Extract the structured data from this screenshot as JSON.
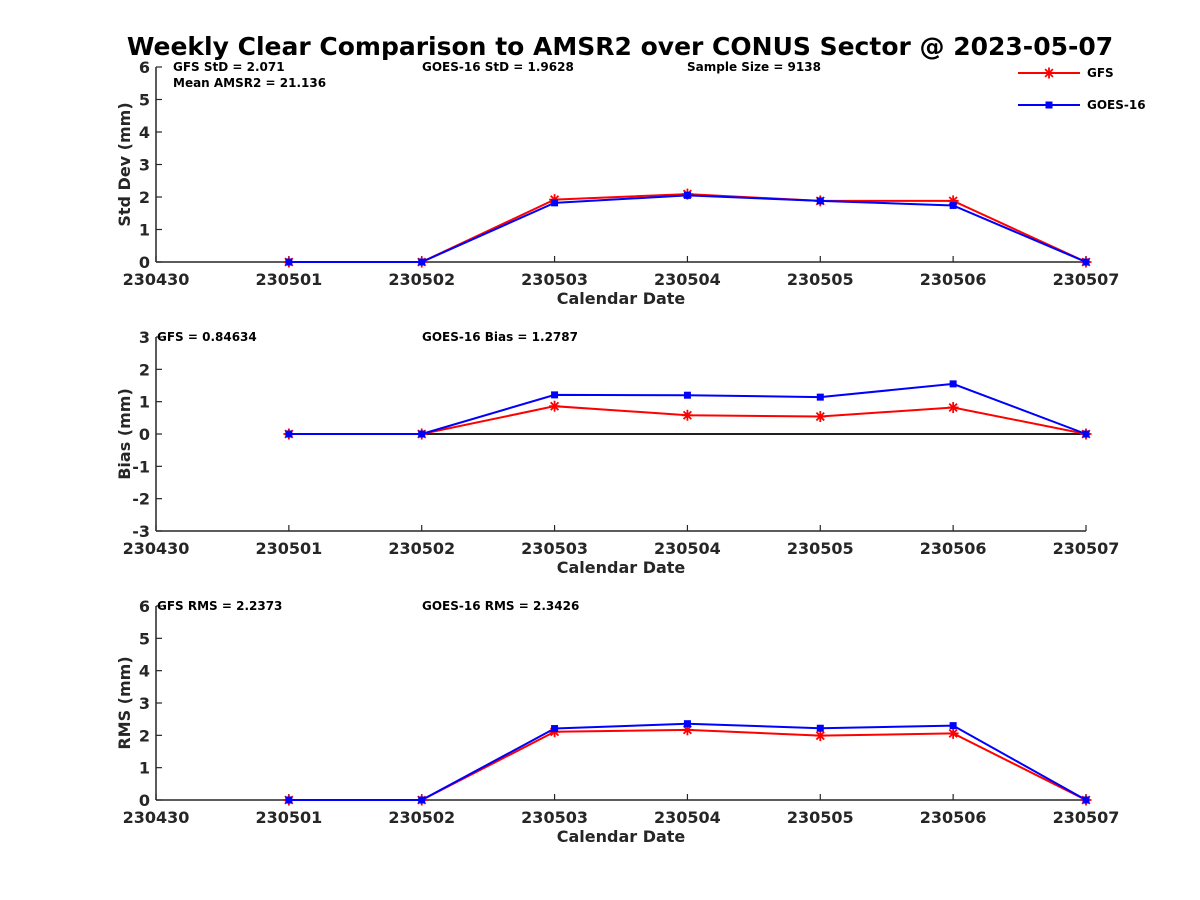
{
  "colors": {
    "gfs": "#ff0000",
    "goes": "#0000ff",
    "axis": "#262626",
    "zero_line": "#000000"
  },
  "chart_data": {
    "title": "Weekly Clear Comparison to AMSR2 over CONUS Sector @ 2023-05-07",
    "legend": {
      "placement": "top-right",
      "entries": [
        {
          "name": "GFS",
          "color": "#ff0000",
          "marker": "asterisk"
        },
        {
          "name": "GOES-16",
          "color": "#0000ff",
          "marker": "square"
        }
      ]
    },
    "panels": [
      {
        "type": "line",
        "ylabel": "Std Dev (mm)",
        "xlabel": "Calendar Date",
        "ylim": [
          0,
          6
        ],
        "yticks": [
          "0",
          "1",
          "2",
          "3",
          "4",
          "5",
          "6"
        ],
        "xticks": [
          "230430",
          "230501",
          "230502",
          "230503",
          "230504",
          "230505",
          "230506",
          "230507"
        ],
        "zero_line": false,
        "annotations": {
          "gfs": "GFS StD = 2.071",
          "goes": "GOES-16 StD = 1.9628",
          "sample": "Sample Size = 9138",
          "mean": "Mean AMSR2 = 21.136"
        },
        "series": [
          {
            "name": "GFS",
            "x": [
              "230501",
              "230502",
              "230503",
              "230504",
              "230505",
              "230506",
              "230507"
            ],
            "values": [
              0,
              0,
              1.92,
              2.09,
              1.88,
              1.88,
              0
            ]
          },
          {
            "name": "GOES-16",
            "x": [
              "230501",
              "230502",
              "230503",
              "230504",
              "230505",
              "230506",
              "230507"
            ],
            "values": [
              0,
              0,
              1.82,
              2.05,
              1.88,
              1.74,
              0
            ]
          }
        ]
      },
      {
        "type": "line",
        "ylabel": "Bias (mm)",
        "xlabel": "Calendar Date",
        "ylim": [
          -3,
          3
        ],
        "yticks": [
          "-3",
          "-2",
          "-1",
          "0",
          "1",
          "2",
          "3"
        ],
        "xticks": [
          "230430",
          "230501",
          "230502",
          "230503",
          "230504",
          "230505",
          "230506",
          "230507"
        ],
        "zero_line": true,
        "annotations": {
          "gfs": "GFS = 0.84634",
          "goes": "GOES-16 Bias  = 1.2787"
        },
        "series": [
          {
            "name": "GFS",
            "x": [
              "230501",
              "230502",
              "230503",
              "230504",
              "230505",
              "230506",
              "230507"
            ],
            "values": [
              0,
              0,
              0.86,
              0.58,
              0.54,
              0.82,
              0
            ]
          },
          {
            "name": "GOES-16",
            "x": [
              "230501",
              "230502",
              "230503",
              "230504",
              "230505",
              "230506",
              "230507"
            ],
            "values": [
              0,
              0,
              1.21,
              1.2,
              1.14,
              1.55,
              0
            ]
          }
        ]
      },
      {
        "type": "line",
        "ylabel": "RMS (mm)",
        "xlabel": "Calendar Date",
        "ylim": [
          0,
          6
        ],
        "yticks": [
          "0",
          "1",
          "2",
          "3",
          "4",
          "5",
          "6"
        ],
        "xticks": [
          "230430",
          "230501",
          "230502",
          "230503",
          "230504",
          "230505",
          "230506",
          "230507"
        ],
        "zero_line": false,
        "annotations": {
          "gfs": "GFS RMS = 2.2373",
          "goes": "GOES-16 RMS = 2.3426"
        },
        "series": [
          {
            "name": "GFS",
            "x": [
              "230501",
              "230502",
              "230503",
              "230504",
              "230505",
              "230506",
              "230507"
            ],
            "values": [
              0,
              0,
              2.11,
              2.17,
              1.99,
              2.06,
              0
            ]
          },
          {
            "name": "GOES-16",
            "x": [
              "230501",
              "230502",
              "230503",
              "230504",
              "230505",
              "230506",
              "230507"
            ],
            "values": [
              0,
              0,
              2.21,
              2.36,
              2.22,
              2.3,
              0
            ]
          }
        ]
      }
    ]
  }
}
